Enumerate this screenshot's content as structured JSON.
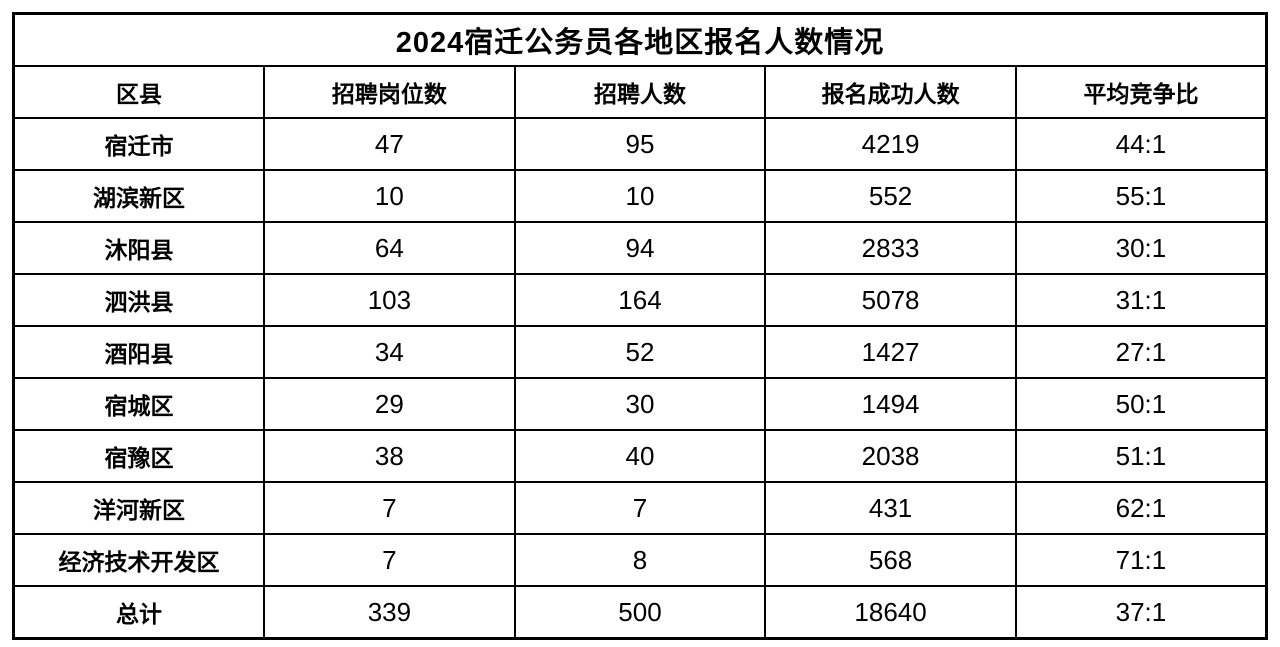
{
  "accent_color": "#c00000",
  "table": {
    "title": "2024宿迁公务员各地区报名人数情况",
    "headers": [
      "区县",
      "招聘岗位数",
      "招聘人数",
      "报名成功人数",
      "平均竞争比"
    ],
    "rows": [
      {
        "region": "宿迁市",
        "positions": "47",
        "recruits": "95",
        "applicants": "4219",
        "ratio": "44:1",
        "highlight": false
      },
      {
        "region": "湖滨新区",
        "positions": "10",
        "recruits": "10",
        "applicants": "552",
        "ratio": "55:1",
        "highlight": true
      },
      {
        "region": "沐阳县",
        "positions": "64",
        "recruits": "94",
        "applicants": "2833",
        "ratio": "30:1",
        "highlight": false
      },
      {
        "region": "泗洪县",
        "positions": "103",
        "recruits": "164",
        "applicants": "5078",
        "ratio": "31:1",
        "highlight": false
      },
      {
        "region": "酒阳县",
        "positions": "34",
        "recruits": "52",
        "applicants": "1427",
        "ratio": "27:1",
        "highlight": false
      },
      {
        "region": "宿城区",
        "positions": "29",
        "recruits": "30",
        "applicants": "1494",
        "ratio": "50:1",
        "highlight": false
      },
      {
        "region": "宿豫区",
        "positions": "38",
        "recruits": "40",
        "applicants": "2038",
        "ratio": "51:1",
        "highlight": false
      },
      {
        "region": "洋河新区",
        "positions": "7",
        "recruits": "7",
        "applicants": "431",
        "ratio": "62:1",
        "highlight": true
      },
      {
        "region": "经济技术开发区",
        "positions": "7",
        "recruits": "8",
        "applicants": "568",
        "ratio": "71:1",
        "highlight": true
      },
      {
        "region": "总计",
        "positions": "339",
        "recruits": "500",
        "applicants": "18640",
        "ratio": "37:1",
        "highlight": false
      }
    ]
  },
  "chart_data": {
    "type": "table",
    "title": "2024宿迁公务员各地区报名人数情况",
    "columns": [
      "区县",
      "招聘岗位数",
      "招聘人数",
      "报名成功人数",
      "平均竞争比"
    ],
    "rows": [
      [
        "宿迁市",
        47,
        95,
        4219,
        "44:1"
      ],
      [
        "湖滨新区",
        10,
        10,
        552,
        "55:1"
      ],
      [
        "沐阳县",
        64,
        94,
        2833,
        "30:1"
      ],
      [
        "泗洪县",
        103,
        164,
        5078,
        "31:1"
      ],
      [
        "酒阳县",
        34,
        52,
        1427,
        "27:1"
      ],
      [
        "宿城区",
        29,
        30,
        1494,
        "50:1"
      ],
      [
        "宿豫区",
        38,
        40,
        2038,
        "51:1"
      ],
      [
        "洋河新区",
        7,
        7,
        431,
        "62:1"
      ],
      [
        "经济技术开发区",
        7,
        8,
        568,
        "71:1"
      ],
      [
        "总计",
        339,
        500,
        18640,
        "37:1"
      ]
    ],
    "highlighted_rows": [
      "湖滨新区",
      "洋河新区",
      "经济技术开发区"
    ],
    "highlight_color": "#c00000"
  }
}
